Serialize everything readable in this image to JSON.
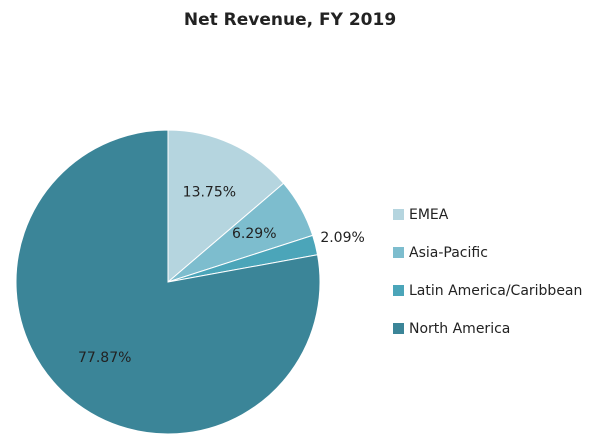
{
  "chart_data": {
    "type": "pie",
    "title": "Net Revenue, FY 2019",
    "categories": [
      "EMEA",
      "Asia-Pacific",
      "Latin America/Caribbean",
      "North America"
    ],
    "values": [
      13.75,
      6.29,
      2.09,
      77.87
    ],
    "value_labels": [
      "13.75%",
      "6.29%",
      "2.09%",
      "77.87%"
    ],
    "colors": [
      "#b5d5df",
      "#7dbdce",
      "#4ba5b9",
      "#3b8598"
    ],
    "legend": "right"
  }
}
